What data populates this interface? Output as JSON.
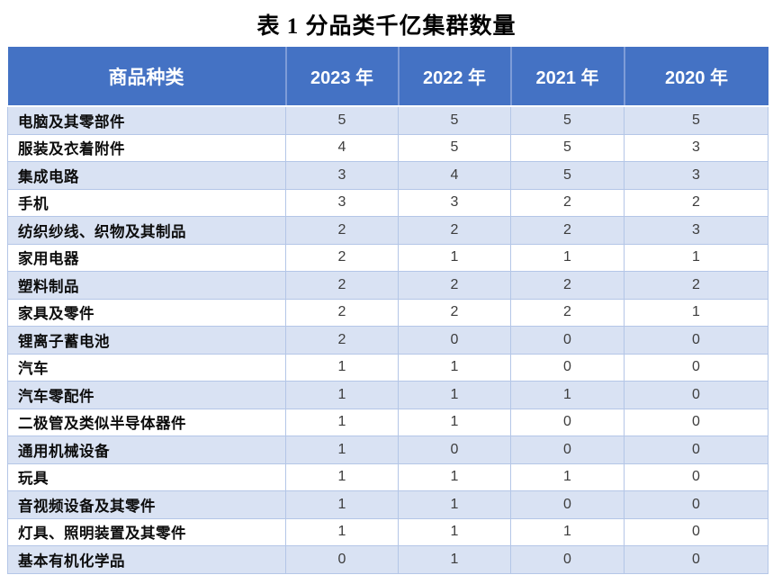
{
  "page_title": "表 1 分品类千亿集群数量",
  "colors": {
    "header_bg": "#4472C4",
    "header_text": "#FFFFFF",
    "band_row_bg": "#D9E2F3",
    "plain_row_bg": "#FFFFFF",
    "border": "#B4C6E7",
    "header_divider": "#7E9CD8",
    "label_text": "#0D0D0D",
    "value_text": "#3D3D3D"
  },
  "chart_data": {
    "type": "table",
    "title": "表 1 分品类千亿集群数量",
    "columns": [
      "商品种类",
      "2023 年",
      "2022 年",
      "2021 年",
      "2020 年"
    ],
    "rows": [
      {
        "label": "电脑及其零部件",
        "values": [
          5,
          5,
          5,
          5
        ]
      },
      {
        "label": "服装及衣着附件",
        "values": [
          4,
          5,
          5,
          3
        ]
      },
      {
        "label": "集成电路",
        "values": [
          3,
          4,
          5,
          3
        ]
      },
      {
        "label": "手机",
        "values": [
          3,
          3,
          2,
          2
        ]
      },
      {
        "label": "纺织纱线、织物及其制品",
        "values": [
          2,
          2,
          2,
          3
        ]
      },
      {
        "label": "家用电器",
        "values": [
          2,
          1,
          1,
          1
        ]
      },
      {
        "label": "塑料制品",
        "values": [
          2,
          2,
          2,
          2
        ]
      },
      {
        "label": "家具及零件",
        "values": [
          2,
          2,
          2,
          1
        ]
      },
      {
        "label": "锂离子蓄电池",
        "values": [
          2,
          0,
          0,
          0
        ]
      },
      {
        "label": "汽车",
        "values": [
          1,
          1,
          0,
          0
        ]
      },
      {
        "label": "汽车零配件",
        "values": [
          1,
          1,
          1,
          0
        ]
      },
      {
        "label": "二极管及类似半导体器件",
        "values": [
          1,
          1,
          0,
          0
        ]
      },
      {
        "label": "通用机械设备",
        "values": [
          1,
          0,
          0,
          0
        ]
      },
      {
        "label": "玩具",
        "values": [
          1,
          1,
          1,
          0
        ]
      },
      {
        "label": "音视频设备及其零件",
        "values": [
          1,
          1,
          0,
          0
        ]
      },
      {
        "label": "灯具、照明装置及其零件",
        "values": [
          1,
          1,
          1,
          0
        ]
      },
      {
        "label": "基本有机化学品",
        "values": [
          0,
          1,
          0,
          0
        ]
      }
    ]
  }
}
